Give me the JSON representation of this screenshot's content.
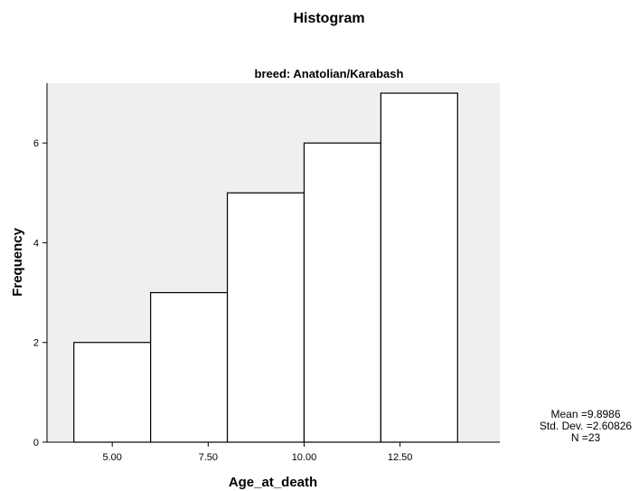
{
  "chart_data": {
    "type": "bar",
    "title": "Histogram",
    "subtitle": "breed: Anatolian/Karabash",
    "xlabel": "Age_at_death",
    "ylabel": "Frequency",
    "bins": [
      {
        "start": 4,
        "end": 6,
        "count": 2
      },
      {
        "start": 6,
        "end": 8,
        "count": 3
      },
      {
        "start": 8,
        "end": 10,
        "count": 5
      },
      {
        "start": 10,
        "end": 12,
        "count": 6
      },
      {
        "start": 12,
        "end": 14,
        "count": 7
      }
    ],
    "xlim": [
      3.3,
      15.1
    ],
    "ylim": [
      0,
      7.2
    ],
    "x_ticks": [
      {
        "value": 5,
        "label": "5.00"
      },
      {
        "value": 7.5,
        "label": "7.50"
      },
      {
        "value": 10,
        "label": "10.00"
      },
      {
        "value": 12.5,
        "label": "12.50"
      }
    ],
    "y_ticks": [
      {
        "value": 0,
        "label": "0"
      },
      {
        "value": 2,
        "label": "2"
      },
      {
        "value": 4,
        "label": "4"
      },
      {
        "value": 6,
        "label": "6"
      }
    ],
    "stats": [
      "Mean =9.8986",
      "Std. Dev. =2.60826",
      "N =23"
    ],
    "colors": {
      "plot_background": "#efefef",
      "bar_fill": "#ffffff",
      "bar_stroke": "#000000"
    }
  }
}
